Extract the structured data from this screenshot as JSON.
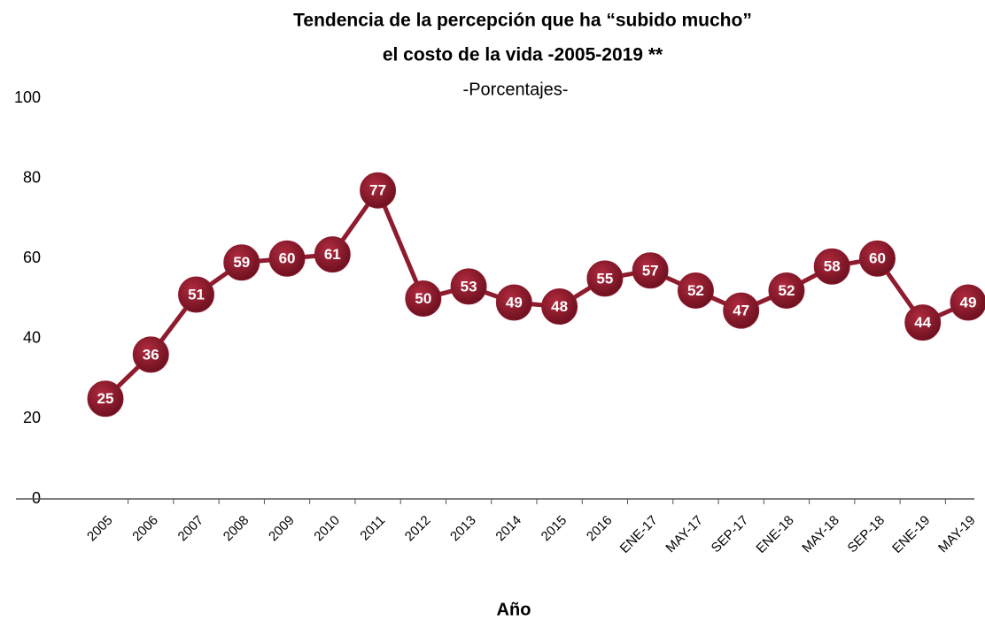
{
  "chart_data": {
    "type": "line",
    "title": [
      "Tendencia de la percepción que ha “subido mucho”",
      "el costo de la vida -2005-2019 **"
    ],
    "subtitle": "-Porcentajes-",
    "x_label": "Año",
    "categories": [
      "2005",
      "2006",
      "2007",
      "2008",
      "2009",
      "2010",
      "2011",
      "2012",
      "2013",
      "2014",
      "2015",
      "2016",
      "ENE-17",
      "MAY-17",
      "SEP-17",
      "ENE-18",
      "MAY-18",
      "SEP-18",
      "ENE-19",
      "MAY-19"
    ],
    "series": [
      {
        "color": "#8e1b2e",
        "values": [
          25,
          36,
          51,
          59,
          60,
          61,
          77,
          50,
          53,
          49,
          48,
          55,
          57,
          52,
          47,
          52,
          58,
          60,
          44,
          49
        ]
      }
    ],
    "ylim": [
      0,
      100
    ],
    "yticks": [
      0,
      20,
      40,
      60,
      80,
      100
    ],
    "grid": false
  }
}
